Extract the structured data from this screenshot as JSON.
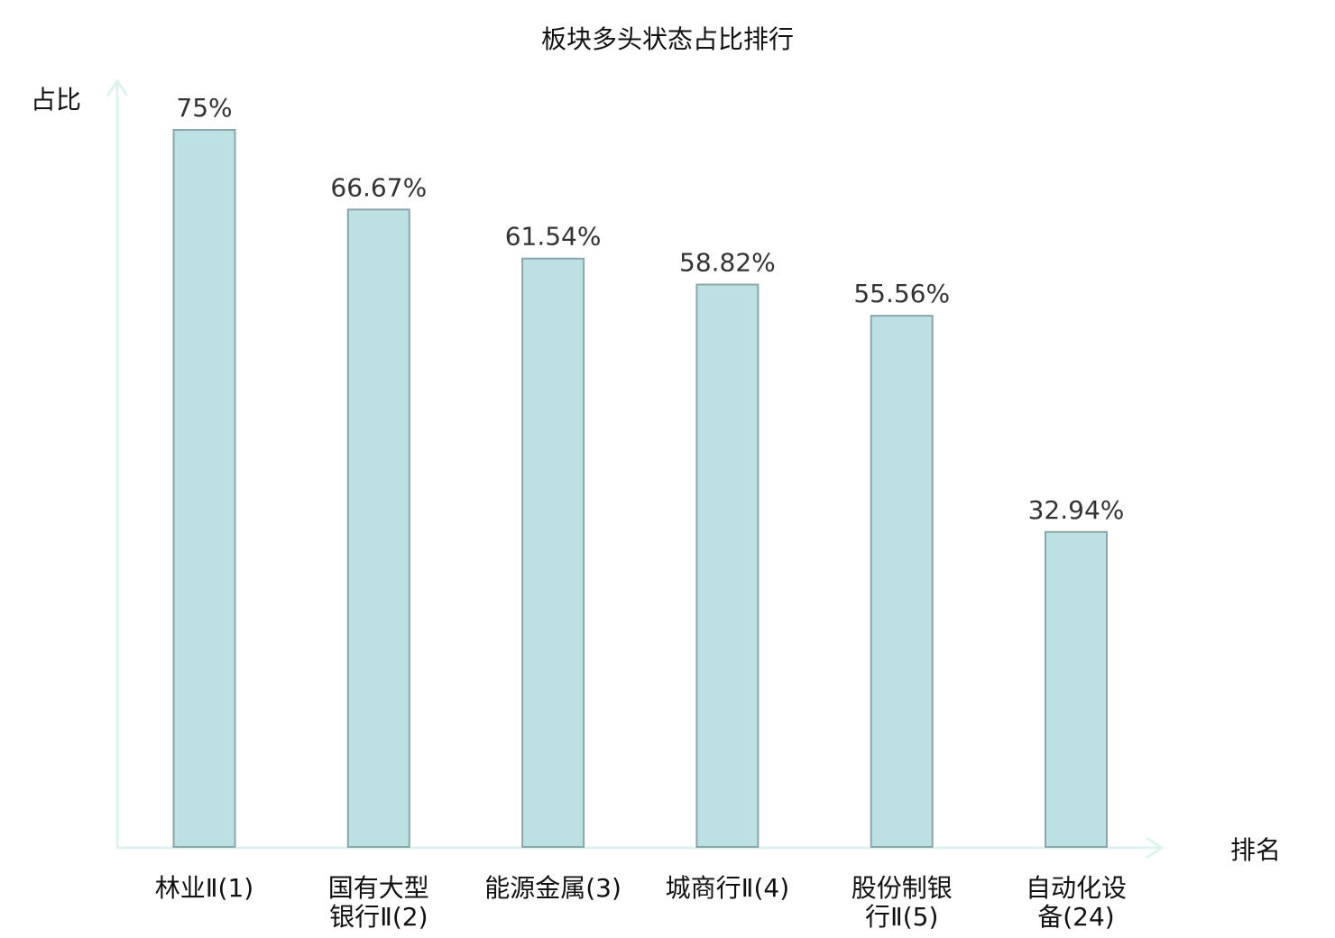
{
  "chart_data": {
    "type": "bar",
    "title": "板块多头状态占比排行",
    "ylabel": "占比",
    "xlabel": "排名",
    "ylim": [
      0,
      80
    ],
    "grid": false,
    "categories": [
      [
        "林业Ⅱ(1)"
      ],
      [
        "国有大型",
        "银行Ⅱ(2)"
      ],
      [
        "能源金属(3)"
      ],
      [
        "城商行Ⅱ(4)"
      ],
      [
        "股份制银",
        "行Ⅱ(5)"
      ],
      [
        "自动化设",
        "备(24)"
      ]
    ],
    "values": [
      75,
      66.67,
      61.54,
      58.82,
      55.56,
      32.94
    ],
    "value_labels": [
      "75%",
      "66.67%",
      "61.54%",
      "58.82%",
      "55.56%",
      "32.94%"
    ],
    "highlight_index": 5,
    "colors": {
      "bar_fill": "#bde0e2",
      "bar_stroke": "#8aa6aa",
      "axis": "#def2ef",
      "text": "#111111",
      "value_text": "#333333",
      "highlight_text": "#e8161b"
    }
  }
}
